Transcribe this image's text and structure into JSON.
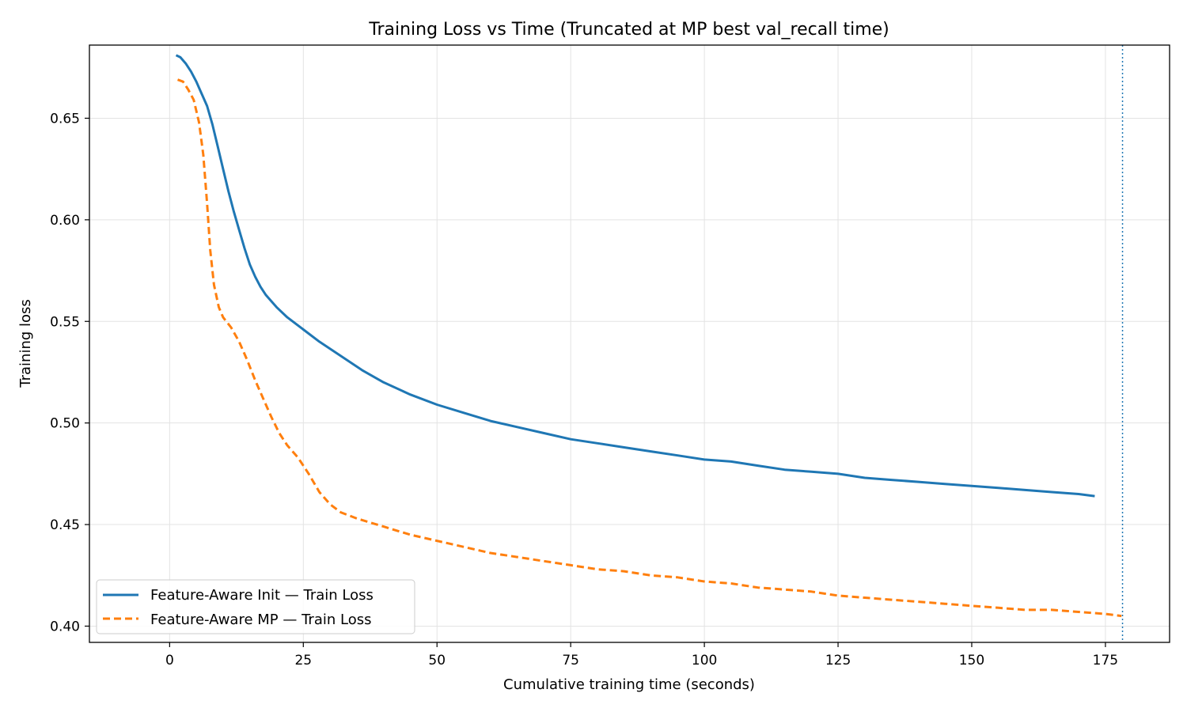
{
  "chart_data": {
    "type": "line",
    "title": "Training Loss vs Time (Truncated at MP best val_recall time)",
    "xlabel": "Cumulative training time (seconds)",
    "ylabel": "Training loss",
    "xlim": [
      -15,
      187
    ],
    "ylim": [
      0.392,
      0.686
    ],
    "xticks": [
      0,
      25,
      50,
      75,
      100,
      125,
      150,
      175
    ],
    "yticks": [
      0.4,
      0.45,
      0.5,
      0.55,
      0.6,
      0.65
    ],
    "grid": true,
    "legend_position": "lower-left",
    "vline": {
      "x": 178.2,
      "color": "#1f77b4",
      "style": "dotted"
    },
    "series": [
      {
        "name": "Feature-Aware Init — Train Loss",
        "color": "#1f77b4",
        "style": "solid",
        "points": [
          [
            1.2,
            0.681
          ],
          [
            2,
            0.68
          ],
          [
            3,
            0.677
          ],
          [
            4,
            0.673
          ],
          [
            5,
            0.668
          ],
          [
            6,
            0.662
          ],
          [
            7,
            0.656
          ],
          [
            8,
            0.647
          ],
          [
            9,
            0.636
          ],
          [
            10,
            0.625
          ],
          [
            11,
            0.614
          ],
          [
            12,
            0.604
          ],
          [
            13,
            0.595
          ],
          [
            14,
            0.586
          ],
          [
            15,
            0.578
          ],
          [
            16,
            0.572
          ],
          [
            17,
            0.567
          ],
          [
            18,
            0.563
          ],
          [
            20,
            0.557
          ],
          [
            22,
            0.552
          ],
          [
            25,
            0.546
          ],
          [
            28,
            0.54
          ],
          [
            32,
            0.533
          ],
          [
            36,
            0.526
          ],
          [
            40,
            0.52
          ],
          [
            45,
            0.514
          ],
          [
            50,
            0.509
          ],
          [
            55,
            0.505
          ],
          [
            60,
            0.501
          ],
          [
            65,
            0.498
          ],
          [
            70,
            0.495
          ],
          [
            75,
            0.492
          ],
          [
            80,
            0.49
          ],
          [
            85,
            0.488
          ],
          [
            90,
            0.486
          ],
          [
            95,
            0.484
          ],
          [
            100,
            0.482
          ],
          [
            105,
            0.481
          ],
          [
            110,
            0.479
          ],
          [
            115,
            0.477
          ],
          [
            120,
            0.476
          ],
          [
            125,
            0.475
          ],
          [
            130,
            0.473
          ],
          [
            135,
            0.472
          ],
          [
            140,
            0.471
          ],
          [
            145,
            0.47
          ],
          [
            150,
            0.469
          ],
          [
            155,
            0.468
          ],
          [
            160,
            0.467
          ],
          [
            165,
            0.466
          ],
          [
            170,
            0.465
          ],
          [
            173,
            0.464
          ]
        ]
      },
      {
        "name": "Feature-Aware MP — Train Loss",
        "color": "#ff7f0e",
        "style": "dashed",
        "points": [
          [
            1.5,
            0.669
          ],
          [
            2.5,
            0.668
          ],
          [
            3.5,
            0.664
          ],
          [
            4.5,
            0.659
          ],
          [
            5.5,
            0.648
          ],
          [
            6.3,
            0.632
          ],
          [
            7,
            0.608
          ],
          [
            7.6,
            0.585
          ],
          [
            8.3,
            0.568
          ],
          [
            9.2,
            0.557
          ],
          [
            10,
            0.552
          ],
          [
            11.5,
            0.547
          ],
          [
            13,
            0.54
          ],
          [
            14.5,
            0.531
          ],
          [
            16,
            0.521
          ],
          [
            17.5,
            0.512
          ],
          [
            19,
            0.503
          ],
          [
            20.5,
            0.495
          ],
          [
            22,
            0.489
          ],
          [
            24,
            0.483
          ],
          [
            26,
            0.475
          ],
          [
            28,
            0.466
          ],
          [
            30,
            0.46
          ],
          [
            32,
            0.456
          ],
          [
            35,
            0.453
          ],
          [
            40,
            0.449
          ],
          [
            45,
            0.445
          ],
          [
            50,
            0.442
          ],
          [
            55,
            0.439
          ],
          [
            60,
            0.436
          ],
          [
            65,
            0.434
          ],
          [
            70,
            0.432
          ],
          [
            75,
            0.43
          ],
          [
            80,
            0.428
          ],
          [
            85,
            0.427
          ],
          [
            90,
            0.425
          ],
          [
            95,
            0.424
          ],
          [
            100,
            0.422
          ],
          [
            105,
            0.421
          ],
          [
            110,
            0.419
          ],
          [
            115,
            0.418
          ],
          [
            120,
            0.417
          ],
          [
            125,
            0.415
          ],
          [
            130,
            0.414
          ],
          [
            135,
            0.413
          ],
          [
            140,
            0.412
          ],
          [
            145,
            0.411
          ],
          [
            150,
            0.41
          ],
          [
            155,
            0.409
          ],
          [
            160,
            0.408
          ],
          [
            165,
            0.408
          ],
          [
            170,
            0.407
          ],
          [
            175,
            0.406
          ],
          [
            178,
            0.405
          ]
        ]
      }
    ]
  }
}
